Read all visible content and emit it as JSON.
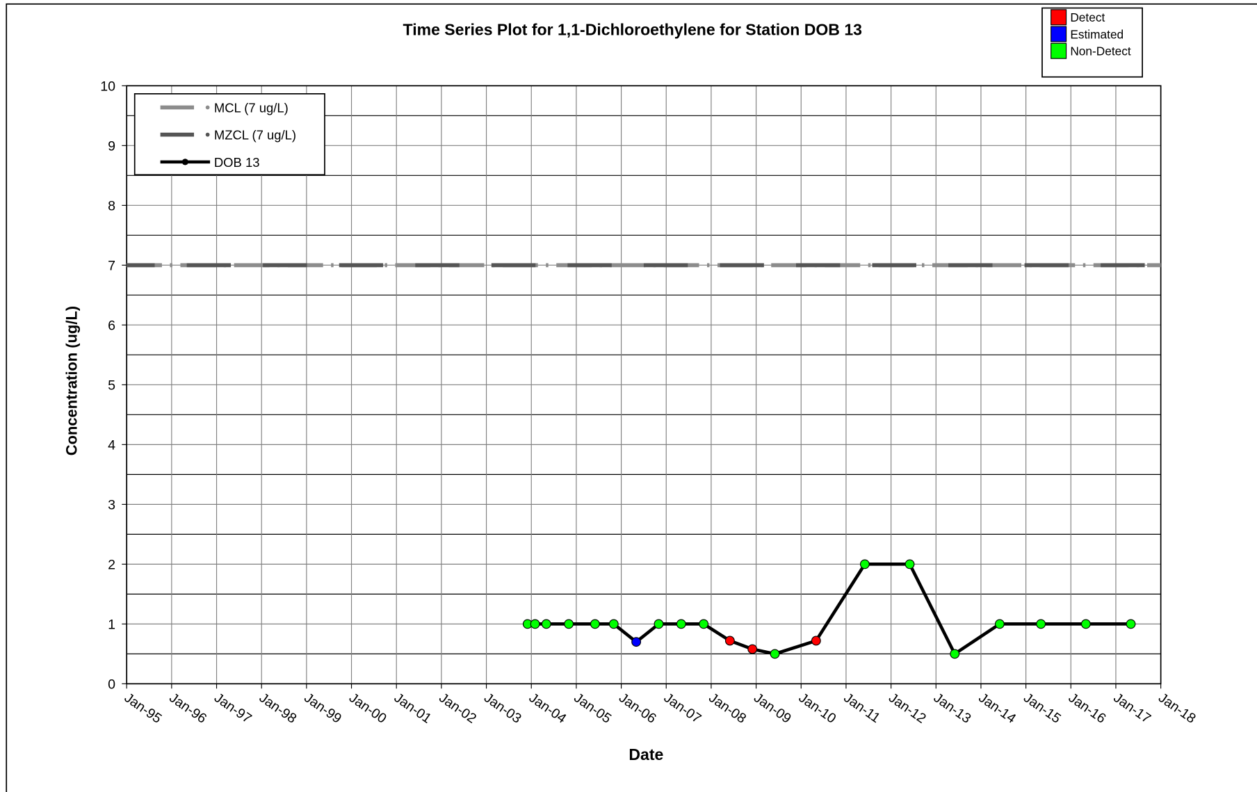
{
  "chart_data": {
    "type": "line",
    "title": "Time Series Plot for 1,1-Dichloroethylene for Station DOB 13",
    "x_label": "Date",
    "y_label": "Concentration  (ug/L)",
    "xlim": [
      "1995-01",
      "2018-01"
    ],
    "xticks": [
      {
        "value": "1995-01",
        "label": "Jan-95"
      },
      {
        "value": "1996-01",
        "label": "Jan-96"
      },
      {
        "value": "1997-01",
        "label": "Jan-97"
      },
      {
        "value": "1998-01",
        "label": "Jan-98"
      },
      {
        "value": "1999-01",
        "label": "Jan-99"
      },
      {
        "value": "2000-01",
        "label": "Jan-00"
      },
      {
        "value": "2001-01",
        "label": "Jan-01"
      },
      {
        "value": "2002-01",
        "label": "Jan-02"
      },
      {
        "value": "2003-01",
        "label": "Jan-03"
      },
      {
        "value": "2004-01",
        "label": "Jan-04"
      },
      {
        "value": "2005-01",
        "label": "Jan-05"
      },
      {
        "value": "2006-01",
        "label": "Jan-06"
      },
      {
        "value": "2007-01",
        "label": "Jan-07"
      },
      {
        "value": "2008-01",
        "label": "Jan-08"
      },
      {
        "value": "2009-01",
        "label": "Jan-09"
      },
      {
        "value": "2010-01",
        "label": "Jan-10"
      },
      {
        "value": "2011-01",
        "label": "Jan-11"
      },
      {
        "value": "2012-01",
        "label": "Jan-12"
      },
      {
        "value": "2013-01",
        "label": "Jan-13"
      },
      {
        "value": "2014-01",
        "label": "Jan-14"
      },
      {
        "value": "2015-01",
        "label": "Jan-15"
      },
      {
        "value": "2016-01",
        "label": "Jan-16"
      },
      {
        "value": "2017-01",
        "label": "Jan-17"
      },
      {
        "value": "2018-01",
        "label": "Jan-18"
      }
    ],
    "ylim": [
      0,
      10
    ],
    "yticks": [
      0,
      1,
      2,
      3,
      4,
      5,
      6,
      7,
      8,
      9,
      10
    ],
    "yminor": [
      0.5,
      1.5,
      2.5,
      3.5,
      4.5,
      5.5,
      6.5,
      7.5,
      8.5,
      9.5
    ],
    "grid": true,
    "reference_lines": [
      {
        "name": "MCL (7 ug/L)",
        "value": 7,
        "color": "#8c8c8c"
      },
      {
        "name": "MZCL (7 ug/L)",
        "value": 7,
        "color": "#555555"
      }
    ],
    "series": [
      {
        "name": "DOB 13",
        "color": "#000000",
        "x": [
          "2003-12",
          "2004-02",
          "2004-05",
          "2004-11",
          "2005-06",
          "2005-11",
          "2006-05",
          "2006-11",
          "2007-05",
          "2007-11",
          "2008-06",
          "2008-12",
          "2009-06",
          "2010-05",
          "2011-06",
          "2012-06",
          "2013-06",
          "2014-06",
          "2015-05",
          "2016-05",
          "2017-05"
        ],
        "values": [
          1,
          1,
          1,
          1,
          1,
          1,
          0.7,
          1,
          1,
          1,
          0.72,
          0.58,
          0.5,
          0.72,
          2,
          2,
          0.5,
          1,
          1,
          1,
          1
        ],
        "point_colors": [
          "#00ff00",
          "#00ff00",
          "#00ff00",
          "#00ff00",
          "#00ff00",
          "#00ff00",
          "#0000ff",
          "#00ff00",
          "#00ff00",
          "#00ff00",
          "#ff0000",
          "#ff0000",
          "#00ff00",
          "#ff0000",
          "#00ff00",
          "#00ff00",
          "#00ff00",
          "#00ff00",
          "#00ff00",
          "#00ff00",
          "#00ff00"
        ]
      }
    ],
    "status_legend": [
      {
        "name": "Detect",
        "color": "#ff0000"
      },
      {
        "name": "Estimated",
        "color": "#0000ff"
      },
      {
        "name": "Non-Detect",
        "color": "#00ff00"
      }
    ]
  }
}
